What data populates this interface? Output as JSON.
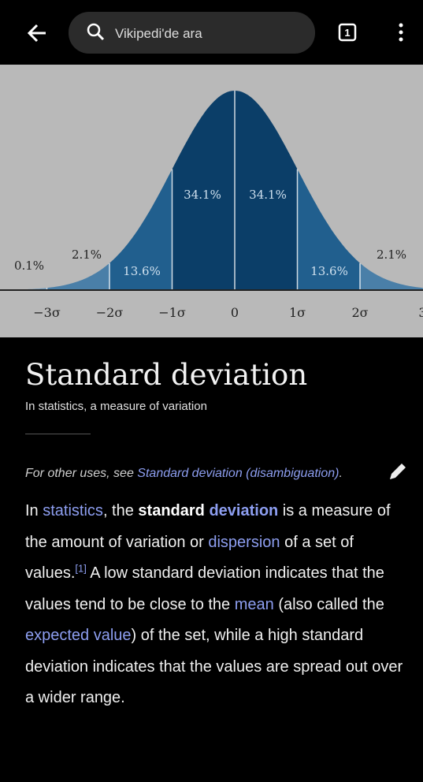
{
  "toolbar": {
    "search_placeholder": "Vikipedi'de ara",
    "tab_count": "1"
  },
  "figure": {
    "percent_labels": [
      "0.1%",
      "2.1%",
      "13.6%",
      "34.1%",
      "34.1%",
      "13.6%",
      "2.1%"
    ],
    "axis_labels": [
      "−3σ",
      "−2σ",
      "−1σ",
      "0",
      "1σ",
      "2σ",
      "3"
    ]
  },
  "article": {
    "title": "Standard deviation",
    "subtitle": "In statistics, a measure of variation",
    "hatnote": [
      {
        "text": "For other uses, see ",
        "kind": "plain"
      },
      {
        "text": "Standard deviation (disambiguation)",
        "kind": "link"
      },
      {
        "text": ".",
        "kind": "plain"
      }
    ],
    "paragraph": [
      {
        "text": "In ",
        "kind": "plain"
      },
      {
        "text": "statistics",
        "kind": "link"
      },
      {
        "text": ", the ",
        "kind": "plain"
      },
      {
        "text": "standard",
        "kind": "bold"
      },
      {
        "text": " ",
        "kind": "plain"
      },
      {
        "text": "deviation",
        "kind": "boldlink"
      },
      {
        "text": " is a measure of the amount of variation or ",
        "kind": "plain"
      },
      {
        "text": "dispersion",
        "kind": "link"
      },
      {
        "text": " of a set of values.",
        "kind": "plain"
      },
      {
        "text": "[1]",
        "kind": "ref"
      },
      {
        "text": " A low standard deviation indicates that the values tend to be close to the ",
        "kind": "plain"
      },
      {
        "text": "mean",
        "kind": "link"
      },
      {
        "text": " (also called the ",
        "kind": "plain"
      },
      {
        "text": "expected value",
        "kind": "link"
      },
      {
        "text": ") of the set, while a high standard deviation indicates that the values are spread out over a wider range.",
        "kind": "plain"
      }
    ]
  }
}
